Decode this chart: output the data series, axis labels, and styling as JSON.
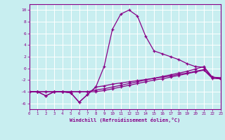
{
  "xlabel": "Windchill (Refroidissement éolien,°C)",
  "background_color": "#c8eef0",
  "line_color": "#880088",
  "x_data": [
    0,
    1,
    2,
    3,
    4,
    5,
    6,
    7,
    8,
    9,
    10,
    11,
    12,
    13,
    14,
    15,
    16,
    17,
    18,
    19,
    20,
    21,
    22,
    23
  ],
  "series1": [
    -4.0,
    -4.0,
    -4.0,
    -4.0,
    -4.0,
    -4.0,
    -4.0,
    -4.0,
    -4.0,
    -3.8,
    -3.5,
    -3.2,
    -2.9,
    -2.6,
    -2.3,
    -2.0,
    -1.8,
    -1.5,
    -1.2,
    -0.9,
    -0.6,
    -0.3,
    -1.7,
    -1.8
  ],
  "series2": [
    -4.0,
    -4.0,
    -4.0,
    -4.0,
    -4.0,
    -4.0,
    -4.0,
    -4.0,
    -3.7,
    -3.5,
    -3.2,
    -2.9,
    -2.6,
    -2.3,
    -2.0,
    -1.7,
    -1.4,
    -1.1,
    -0.8,
    -0.5,
    -0.1,
    0.3,
    -1.5,
    -1.6
  ],
  "series3": [
    -4.0,
    -4.0,
    -4.7,
    -4.0,
    -4.0,
    -4.2,
    -5.8,
    -4.5,
    -3.2,
    -3.0,
    -2.7,
    -2.5,
    -2.3,
    -2.1,
    -1.9,
    -1.7,
    -1.5,
    -1.3,
    -1.0,
    -0.8,
    -0.5,
    -0.2,
    -1.5,
    -1.7
  ],
  "series4": [
    -4.0,
    -4.0,
    -4.7,
    -4.0,
    -4.0,
    -4.2,
    -5.8,
    -4.5,
    -3.2,
    0.3,
    6.7,
    9.3,
    10.0,
    9.0,
    5.5,
    3.0,
    2.5,
    2.0,
    1.5,
    0.8,
    0.3,
    0.2,
    -1.5,
    -1.7
  ],
  "xlim": [
    0,
    23
  ],
  "ylim": [
    -7,
    11
  ],
  "yticks": [
    -6,
    -4,
    -2,
    0,
    2,
    4,
    6,
    8,
    10
  ],
  "xticks": [
    0,
    1,
    2,
    3,
    4,
    5,
    6,
    7,
    8,
    9,
    10,
    11,
    12,
    13,
    14,
    15,
    16,
    17,
    18,
    19,
    20,
    21,
    22,
    23
  ],
  "grid_color": "#aadddd",
  "spine_color": "#880088"
}
